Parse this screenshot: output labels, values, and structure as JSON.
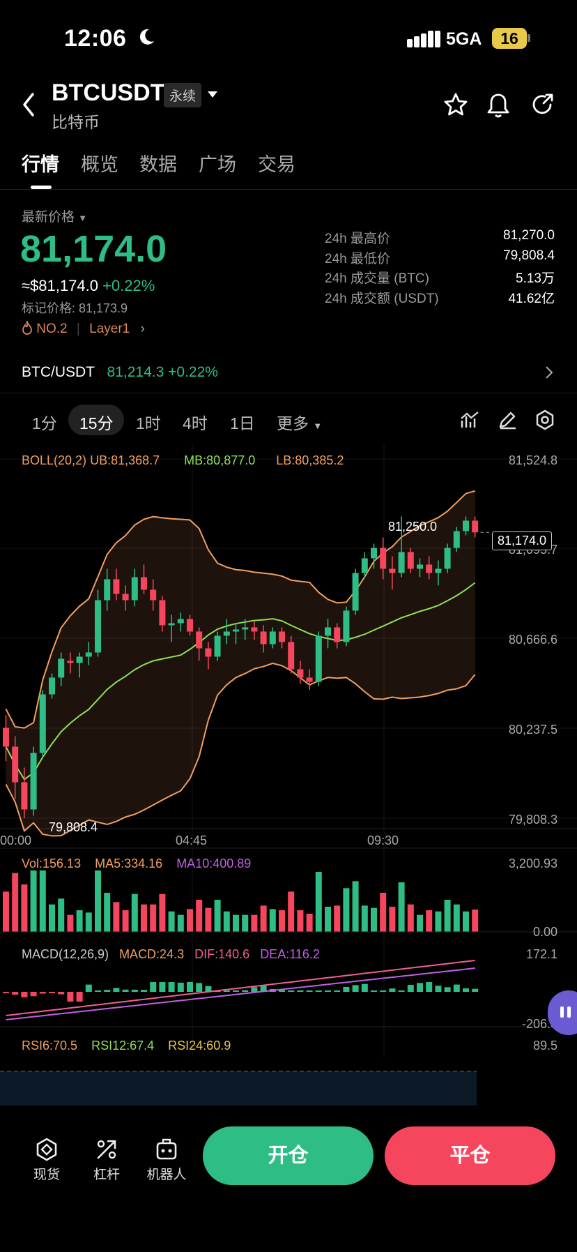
{
  "status": {
    "time": "12:06",
    "network": "5GA",
    "battery": "16"
  },
  "header": {
    "symbol": "BTCUSDT",
    "tag": "永续",
    "subname": "比特币"
  },
  "tabs": [
    "行情",
    "概览",
    "数据",
    "广场",
    "交易"
  ],
  "ticker": {
    "latest_label": "最新价格",
    "price": "81,174.0",
    "usd_price": "≈$81,174.0",
    "change": "+0.22%",
    "mark_price": "标记价格: 81,173.9",
    "rank": "NO.2",
    "sector": "Layer1",
    "stats": [
      {
        "label": "24h 最高价",
        "value": "81,270.0"
      },
      {
        "label": "24h 最低价",
        "value": "79,808.4"
      },
      {
        "label": "24h 成交量 (BTC)",
        "value": "5.13万"
      },
      {
        "label": "24h 成交额 (USDT)",
        "value": "41.62亿"
      }
    ],
    "spot_pair": "BTC/USDT",
    "spot_price": "81,214.3",
    "spot_change": "+0.22%"
  },
  "intervals": [
    "1分",
    "15分",
    "1时",
    "4时",
    "1日",
    "更多"
  ],
  "chart_data": {
    "type": "candlestick",
    "boll": {
      "label": "BOLL(20,2)",
      "ub": "UB:81,368.7",
      "mb": "MB:80,877.0",
      "lb": "LB:80,385.2"
    },
    "price_axis": [
      "81,524.8",
      "81,095.7",
      "80,666.6",
      "80,237.5",
      "79,808.3"
    ],
    "time_axis": [
      "00:00",
      "04:45",
      "09:30"
    ],
    "high_label": "81,250.0",
    "low_label": "79,808.4",
    "last_label": "81,174.0",
    "vol": {
      "vol": "Vol:156.13",
      "ma5": "MA5:334.16",
      "ma10": "MA10:400.89",
      "axis_top": "3,200.93",
      "axis_bottom": "0.00"
    },
    "macd": {
      "label": "MACD(12,26,9)",
      "macd": "MACD:24.3",
      "dif": "DIF:140.6",
      "dea": "DEA:116.2",
      "axis_top": "172.1",
      "axis_bottom": "-206.3"
    },
    "rsi": {
      "rsi6": "RSI6:70.5",
      "rsi12": "RSI12:67.4",
      "rsi24": "RSI24:60.9",
      "axis_top": "89.5"
    },
    "candles": [
      [
        80240,
        80300,
        80080,
        80150
      ],
      [
        80150,
        80200,
        79900,
        79980
      ],
      [
        79980,
        80050,
        79808,
        79850
      ],
      [
        79850,
        80150,
        79820,
        80120
      ],
      [
        80120,
        80420,
        80100,
        80400
      ],
      [
        80400,
        80500,
        80380,
        80480
      ],
      [
        80480,
        80600,
        80440,
        80570
      ],
      [
        80560,
        80600,
        80500,
        80550
      ],
      [
        80550,
        80600,
        80480,
        80580
      ],
      [
        80580,
        80650,
        80540,
        80600
      ],
      [
        80600,
        80900,
        80580,
        80850
      ],
      [
        80850,
        81000,
        80800,
        80950
      ],
      [
        80950,
        81000,
        80850,
        80880
      ],
      [
        80880,
        80920,
        80800,
        80850
      ],
      [
        80850,
        81000,
        80820,
        80960
      ],
      [
        80960,
        81020,
        80880,
        80900
      ],
      [
        80900,
        80950,
        80800,
        80850
      ],
      [
        80850,
        80870,
        80700,
        80730
      ],
      [
        80730,
        80780,
        80650,
        80740
      ],
      [
        80740,
        80790,
        80700,
        80760
      ],
      [
        80760,
        80780,
        80680,
        80700
      ],
      [
        80700,
        80720,
        80560,
        80620
      ],
      [
        80620,
        80650,
        80520,
        80580
      ],
      [
        80580,
        80700,
        80560,
        80680
      ],
      [
        80680,
        80760,
        80640,
        80700
      ],
      [
        80700,
        80740,
        80640,
        80710
      ],
      [
        80710,
        80760,
        80660,
        80720
      ],
      [
        80720,
        80750,
        80660,
        80700
      ],
      [
        80700,
        80730,
        80600,
        80640
      ],
      [
        80640,
        80720,
        80620,
        80700
      ],
      [
        80700,
        80720,
        80620,
        80650
      ],
      [
        80650,
        80680,
        80500,
        80520
      ],
      [
        80520,
        80560,
        80450,
        80480
      ],
      [
        80480,
        80520,
        80420,
        80460
      ],
      [
        80460,
        80700,
        80440,
        80680
      ],
      [
        80680,
        80760,
        80620,
        80720
      ],
      [
        80720,
        80740,
        80620,
        80650
      ],
      [
        80650,
        80820,
        80630,
        80800
      ],
      [
        80800,
        81000,
        80780,
        80980
      ],
      [
        80980,
        81080,
        80960,
        81050
      ],
      [
        81050,
        81120,
        81000,
        81100
      ],
      [
        81100,
        81150,
        80950,
        81000
      ],
      [
        81000,
        81060,
        80900,
        80980
      ],
      [
        80980,
        81250,
        80960,
        81080
      ],
      [
        81080,
        81100,
        80980,
        81000
      ],
      [
        81000,
        81050,
        80960,
        81020
      ],
      [
        81020,
        81060,
        80950,
        80980
      ],
      [
        80980,
        81040,
        80920,
        81000
      ],
      [
        81000,
        81120,
        80980,
        81100
      ],
      [
        81100,
        81200,
        81080,
        81180
      ],
      [
        81180,
        81250,
        81160,
        81230
      ],
      [
        81230,
        81250,
        81150,
        81174
      ]
    ]
  },
  "bottom": {
    "spot": "现货",
    "lever": "杠杆",
    "robot": "机器人",
    "open": "开仓",
    "close": "平仓"
  }
}
